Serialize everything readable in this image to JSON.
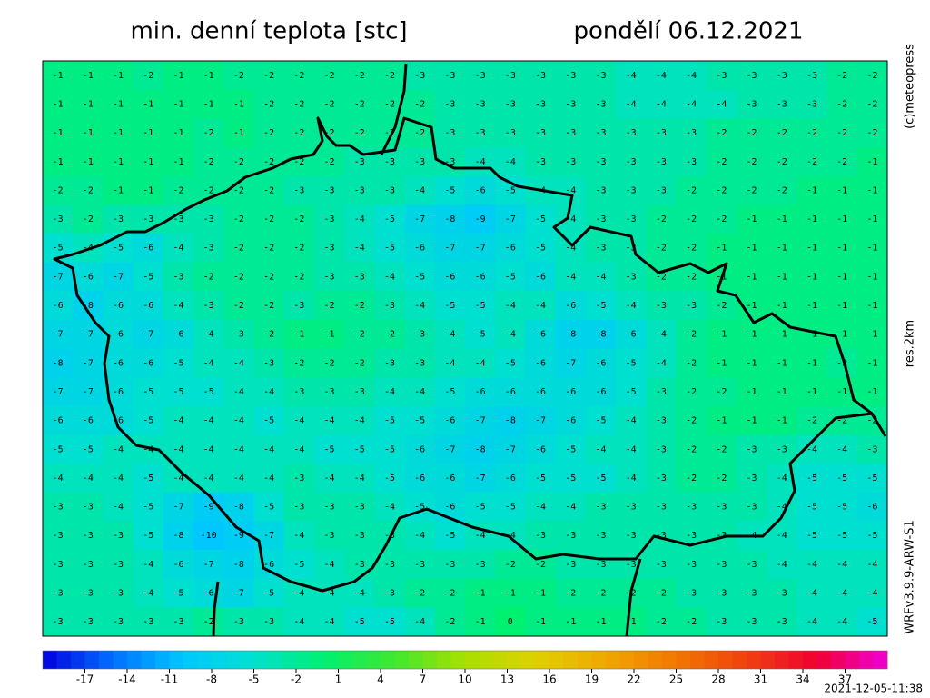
{
  "header": {
    "title": "min. denní teplota [stc]",
    "date": "pondělí 06.12.2021"
  },
  "side": {
    "copyright": "(c)meteopress",
    "resolution": "res.2km",
    "model": "WRFv3.9.9-ARW-S1"
  },
  "timestamp": "2021-12-05-11:38",
  "colorbar": {
    "min": -20,
    "max": 40,
    "ticks": [
      -17,
      -14,
      -11,
      -8,
      -5,
      -2,
      1,
      4,
      7,
      10,
      13,
      16,
      19,
      22,
      25,
      28,
      31,
      34,
      37
    ],
    "colors": [
      "#0000e0",
      "#0070ff",
      "#00c8ff",
      "#00e0d0",
      "#00f070",
      "#40e830",
      "#a8e000",
      "#e0d000",
      "#f0a800",
      "#f07800",
      "#f04010",
      "#f00030",
      "#f000d8"
    ]
  },
  "grid": {
    "rows": [
      [
        -1,
        -1,
        -1,
        -2,
        -1,
        -1,
        -2,
        -2,
        -2,
        -2,
        -2,
        -2,
        -3,
        -3,
        -3,
        -3,
        -3,
        -3,
        -3,
        -4,
        -4,
        -4,
        -3,
        -3,
        -3,
        -3,
        -2,
        -2
      ],
      [
        -1,
        -1,
        -1,
        -1,
        -1,
        -1,
        -1,
        -2,
        -2,
        -2,
        -2,
        -2,
        -2,
        -3,
        -3,
        -3,
        -3,
        -3,
        -3,
        -4,
        -4,
        -4,
        -4,
        -3,
        -3,
        -3,
        -2,
        -2
      ],
      [
        -1,
        -1,
        -1,
        -1,
        -1,
        -2,
        -1,
        -2,
        -2,
        -2,
        -2,
        -2,
        -2,
        -3,
        -3,
        -3,
        -3,
        -3,
        -3,
        -3,
        -3,
        -3,
        -2,
        -2,
        -2,
        -2,
        -2,
        -2
      ],
      [
        -1,
        -1,
        -1,
        -1,
        -1,
        -2,
        -2,
        -2,
        -2,
        -2,
        -3,
        -3,
        -3,
        -3,
        -4,
        -4,
        -3,
        -3,
        -3,
        -3,
        -3,
        -3,
        -2,
        -2,
        -2,
        -2,
        -2,
        -1
      ],
      [
        -2,
        -2,
        -1,
        -1,
        -2,
        -2,
        -2,
        -2,
        -3,
        -3,
        -3,
        -3,
        -4,
        -5,
        -6,
        -5,
        -4,
        -4,
        -3,
        -3,
        -3,
        -2,
        -2,
        -2,
        -2,
        -1,
        -1,
        -1
      ],
      [
        -3,
        -2,
        -3,
        -3,
        -3,
        -3,
        -2,
        -2,
        -2,
        -3,
        -4,
        -5,
        -7,
        -8,
        -9,
        -7,
        -5,
        -4,
        -3,
        -3,
        -2,
        -2,
        -2,
        -1,
        -1,
        -1,
        -1,
        -1
      ],
      [
        -5,
        -4,
        -5,
        -6,
        -4,
        -3,
        -2,
        -2,
        -2,
        -3,
        -4,
        -5,
        -6,
        -7,
        -7,
        -6,
        -5,
        -4,
        -3,
        -3,
        -2,
        -2,
        -1,
        -1,
        -1,
        -1,
        -1,
        -1
      ],
      [
        -7,
        -6,
        -7,
        -5,
        -3,
        -2,
        -2,
        -2,
        -2,
        -3,
        -3,
        -4,
        -5,
        -6,
        -6,
        -5,
        -6,
        -4,
        -4,
        -3,
        -2,
        -2,
        -1,
        -1,
        -1,
        -1,
        -1,
        -1
      ],
      [
        -6,
        -8,
        -6,
        -6,
        -4,
        -3,
        -2,
        -2,
        -3,
        -2,
        -2,
        -3,
        -4,
        -5,
        -5,
        -4,
        -4,
        -6,
        -5,
        -4,
        -3,
        -3,
        -2,
        -1,
        -1,
        -1,
        -1,
        -1
      ],
      [
        -7,
        -7,
        -6,
        -7,
        -6,
        -4,
        -3,
        -2,
        -1,
        -1,
        -2,
        -2,
        -3,
        -4,
        -5,
        -4,
        -6,
        -8,
        -8,
        -6,
        -4,
        -2,
        -1,
        -1,
        -1,
        -1,
        -1,
        -1
      ],
      [
        -8,
        -7,
        -6,
        -6,
        -5,
        -4,
        -4,
        -3,
        -2,
        -2,
        -2,
        -3,
        -3,
        -4,
        -4,
        -5,
        -6,
        -7,
        -6,
        -5,
        -4,
        -2,
        -1,
        -1,
        -1,
        -1,
        -2,
        -1
      ],
      [
        -7,
        -7,
        -6,
        -5,
        -5,
        -5,
        -4,
        -4,
        -3,
        -3,
        -3,
        -4,
        -4,
        -5,
        -6,
        -6,
        -6,
        -6,
        -6,
        -5,
        -3,
        -2,
        -2,
        -1,
        -1,
        -1,
        -1,
        -1
      ],
      [
        -6,
        -6,
        -6,
        -5,
        -4,
        -4,
        -4,
        -5,
        -4,
        -4,
        -4,
        -5,
        -5,
        -6,
        -7,
        -8,
        -7,
        -6,
        -5,
        -4,
        -3,
        -2,
        -1,
        -1,
        -1,
        -2,
        -2,
        -2
      ],
      [
        -5,
        -5,
        -4,
        -4,
        -4,
        -4,
        -4,
        -4,
        -4,
        -5,
        -5,
        -5,
        -6,
        -7,
        -8,
        -7,
        -6,
        -5,
        -4,
        -4,
        -3,
        -2,
        -2,
        -3,
        -3,
        -4,
        -4,
        -3
      ],
      [
        -4,
        -4,
        -4,
        -5,
        -4,
        -4,
        -4,
        -4,
        -3,
        -4,
        -4,
        -5,
        -6,
        -6,
        -7,
        -6,
        -5,
        -5,
        -5,
        -4,
        -3,
        -2,
        -2,
        -3,
        -4,
        -5,
        -5,
        -5
      ],
      [
        -3,
        -3,
        -4,
        -5,
        -7,
        -9,
        -8,
        -5,
        -3,
        -3,
        -3,
        -4,
        -5,
        -6,
        -5,
        -5,
        -4,
        -4,
        -3,
        -3,
        -3,
        -3,
        -3,
        -3,
        -4,
        -5,
        -5,
        -6
      ],
      [
        -3,
        -3,
        -3,
        -5,
        -8,
        -10,
        -9,
        -7,
        -4,
        -3,
        -3,
        -3,
        -4,
        -5,
        -4,
        -4,
        -3,
        -3,
        -3,
        -3,
        -3,
        -3,
        -3,
        -4,
        -4,
        -5,
        -5,
        -5
      ],
      [
        -3,
        -3,
        -3,
        -4,
        -6,
        -7,
        -8,
        -6,
        -5,
        -4,
        -3,
        -3,
        -3,
        -3,
        -3,
        -2,
        -2,
        -3,
        -3,
        -3,
        -3,
        -3,
        -3,
        -3,
        -4,
        -4,
        -4,
        -4
      ],
      [
        -3,
        -3,
        -3,
        -4,
        -5,
        -6,
        -7,
        -5,
        -4,
        -4,
        -4,
        -3,
        -2,
        -2,
        -1,
        -1,
        -1,
        -2,
        -2,
        -2,
        -2,
        -3,
        -3,
        -3,
        -3,
        -4,
        -4,
        -4
      ],
      [
        -3,
        -3,
        -3,
        -3,
        -3,
        -2,
        -3,
        -3,
        -4,
        -4,
        -5,
        -5,
        -4,
        -2,
        -1,
        0,
        -1,
        -1,
        -1,
        -1,
        -2,
        -2,
        -3,
        -3,
        -3,
        -4,
        -4,
        -5
      ]
    ]
  }
}
